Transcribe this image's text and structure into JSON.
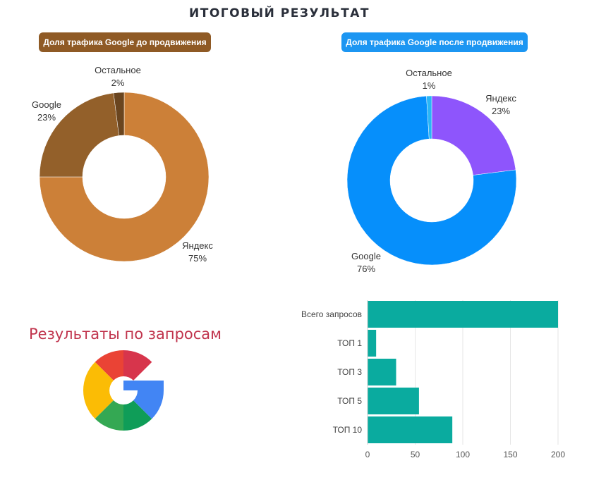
{
  "page": {
    "title": "ИТОГОВЫЙ РЕЗУЛЬТАТ",
    "left_badge": "Доля трафика Google до продвижения",
    "right_badge": "Доля трафика Google после продвижения",
    "results_title": "Результаты по запросам",
    "logo_icon": "google-g-logo-icon"
  },
  "colors": {
    "left_badge": "#8f5a25",
    "right_badge": "#1c96f2",
    "results_title": "#c0334c",
    "bar": "#0aab9f"
  },
  "chart_data": [
    {
      "type": "pie",
      "variant": "donut",
      "title": "Доля трафика Google до продвижения",
      "slices": [
        {
          "label": "Яндекс",
          "value": 75,
          "text": "75%",
          "color": "#cc8038"
        },
        {
          "label": "Google",
          "value": 23,
          "text": "23%",
          "color": "#93602a"
        },
        {
          "label": "Остальное",
          "value": 2,
          "text": "2%",
          "color": "#6a451f"
        }
      ]
    },
    {
      "type": "pie",
      "variant": "donut",
      "title": "Доля трафика Google после продвижения",
      "slices": [
        {
          "label": "Яндекс",
          "value": 23,
          "text": "23%",
          "color": "#8e55fc"
        },
        {
          "label": "Google",
          "value": 76,
          "text": "76%",
          "color": "#068ffb"
        },
        {
          "label": "Остальное",
          "value": 1,
          "text": "1%",
          "color": "#29b6f6"
        }
      ]
    },
    {
      "type": "bar",
      "orientation": "horizontal",
      "title": "",
      "categories": [
        "Всего запросов",
        "ТОП 1",
        "ТОП 3",
        "ТОП 5",
        "ТОП 10"
      ],
      "values": [
        200,
        9,
        30,
        54,
        89
      ],
      "xlim": [
        0,
        200
      ],
      "xticks": [
        0,
        50,
        100,
        150,
        200
      ],
      "grid": true,
      "color": "#0aab9f"
    }
  ]
}
